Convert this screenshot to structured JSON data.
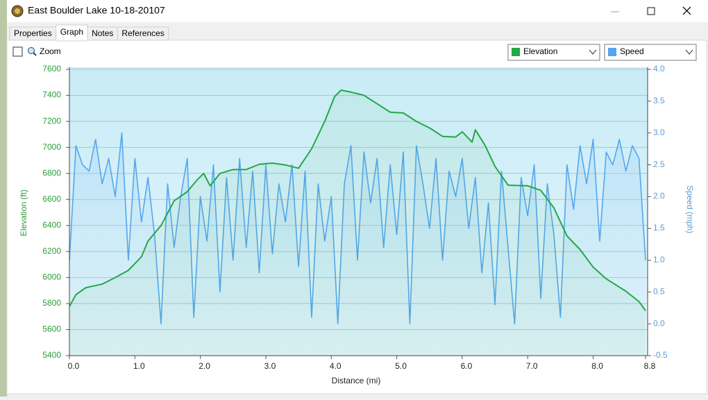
{
  "window": {
    "title": "East Boulder Lake 10-18-20107"
  },
  "tabs": [
    "Properties",
    "Graph",
    "Notes",
    "References"
  ],
  "toolbar": {
    "zoom": "Zoom"
  },
  "chart_data": {
    "type": "line",
    "xlabel": "Distance (mi)",
    "ylabel": "Elevation (ft)",
    "y2label": "Speed (mph)",
    "xlim": [
      0,
      8.8
    ],
    "xticks": [
      {
        "value": 0,
        "label": "0.0"
      },
      {
        "value": 1,
        "label": "1.0"
      },
      {
        "value": 2,
        "label": "2.0"
      },
      {
        "value": 3,
        "label": "3.0"
      },
      {
        "value": 4,
        "label": "4.0"
      },
      {
        "value": 5,
        "label": "5.0"
      },
      {
        "value": 6,
        "label": "6.0"
      },
      {
        "value": 7,
        "label": "7.0"
      },
      {
        "value": 8,
        "label": "8.0"
      },
      8.8
    ],
    "ylim": [
      5400,
      7600
    ],
    "yticks": [
      5400,
      5600,
      5800,
      6000,
      6200,
      6400,
      6600,
      6800,
      7000,
      7200,
      7400,
      7600
    ],
    "y2lim": [
      -0.5,
      4.0
    ],
    "y2ticks": [
      -0.5,
      {
        "value": 0,
        "label": "0.0"
      },
      0.5,
      {
        "value": 1,
        "label": "1.0"
      },
      1.5,
      {
        "value": 2,
        "label": "2.0"
      },
      2.5,
      {
        "value": 3,
        "label": "3.0"
      },
      3.5,
      {
        "value": 4,
        "label": "4.0"
      }
    ],
    "grid": true,
    "series": [
      {
        "name": "Elevation",
        "color": "#22a845",
        "x": [
          0,
          0.1,
          0.25,
          0.5,
          0.7,
          0.9,
          1.1,
          1.2,
          1.4,
          1.6,
          1.8,
          1.95,
          2.05,
          2.15,
          2.3,
          2.5,
          2.7,
          2.9,
          3.1,
          3.3,
          3.5,
          3.7,
          3.9,
          4.05,
          4.15,
          4.3,
          4.5,
          4.7,
          4.9,
          5.1,
          5.3,
          5.5,
          5.7,
          5.9,
          6.0,
          6.15,
          6.2,
          6.35,
          6.5,
          6.7,
          7.0,
          7.2,
          7.4,
          7.6,
          7.8,
          8.0,
          8.2,
          8.5,
          8.7,
          8.8
        ],
        "values": [
          5778,
          5869,
          5922,
          5950,
          6000,
          6055,
          6160,
          6280,
          6400,
          6590,
          6660,
          6750,
          6800,
          6705,
          6800,
          6830,
          6830,
          6870,
          6880,
          6865,
          6840,
          6990,
          7200,
          7390,
          7440,
          7425,
          7400,
          7335,
          7270,
          7265,
          7200,
          7150,
          7085,
          7080,
          7120,
          7040,
          7135,
          7015,
          6855,
          6710,
          6705,
          6670,
          6535,
          6320,
          6215,
          6080,
          5990,
          5895,
          5815,
          5745
        ]
      },
      {
        "name": "Speed",
        "color": "#55a6ee",
        "axis": "y2",
        "x": [
          0,
          0.1,
          0.2,
          0.3,
          0.4,
          0.5,
          0.6,
          0.7,
          0.8,
          0.9,
          1,
          1.1,
          1.2,
          1.3,
          1.4,
          1.5,
          1.6,
          1.7,
          1.8,
          1.9,
          2,
          2.1,
          2.2,
          2.3,
          2.4,
          2.5,
          2.6,
          2.7,
          2.8,
          2.9,
          3,
          3.1,
          3.2,
          3.3,
          3.4,
          3.5,
          3.6,
          3.7,
          3.8,
          3.9,
          4,
          4.1,
          4.2,
          4.3,
          4.4,
          4.5,
          4.6,
          4.7,
          4.8,
          4.9,
          5,
          5.1,
          5.2,
          5.3,
          5.4,
          5.5,
          5.6,
          5.7,
          5.8,
          5.9,
          6,
          6.1,
          6.2,
          6.3,
          6.4,
          6.5,
          6.6,
          6.7,
          6.8,
          6.9,
          7,
          7.1,
          7.2,
          7.3,
          7.4,
          7.5,
          7.6,
          7.7,
          7.8,
          7.9,
          8,
          8.1,
          8.2,
          8.3,
          8.4,
          8.5,
          8.6,
          8.7,
          8.8
        ],
        "values": [
          1.0,
          2.8,
          2.5,
          2.4,
          2.9,
          2.2,
          2.6,
          2.0,
          3.0,
          1.0,
          2.6,
          1.6,
          2.3,
          1.4,
          0.0,
          2.2,
          1.2,
          2.0,
          2.6,
          0.1,
          2.0,
          1.3,
          2.5,
          0.5,
          2.3,
          1.0,
          2.6,
          1.2,
          2.4,
          0.8,
          2.5,
          1.1,
          2.2,
          1.6,
          2.5,
          0.9,
          2.4,
          0.1,
          2.2,
          1.3,
          2.0,
          0.0,
          2.2,
          2.8,
          1.0,
          2.7,
          1.9,
          2.6,
          1.2,
          2.5,
          1.4,
          2.7,
          0.0,
          2.8,
          2.2,
          1.5,
          2.6,
          1.0,
          2.4,
          2.0,
          2.6,
          1.5,
          2.3,
          0.8,
          1.9,
          0.3,
          2.4,
          1.2,
          0.0,
          2.3,
          1.7,
          2.5,
          0.4,
          2.2,
          1.4,
          0.1,
          2.5,
          1.8,
          2.8,
          2.2,
          2.9,
          1.3,
          2.7,
          2.5,
          2.9,
          2.4,
          2.8,
          2.6,
          1.0
        ]
      }
    ]
  }
}
